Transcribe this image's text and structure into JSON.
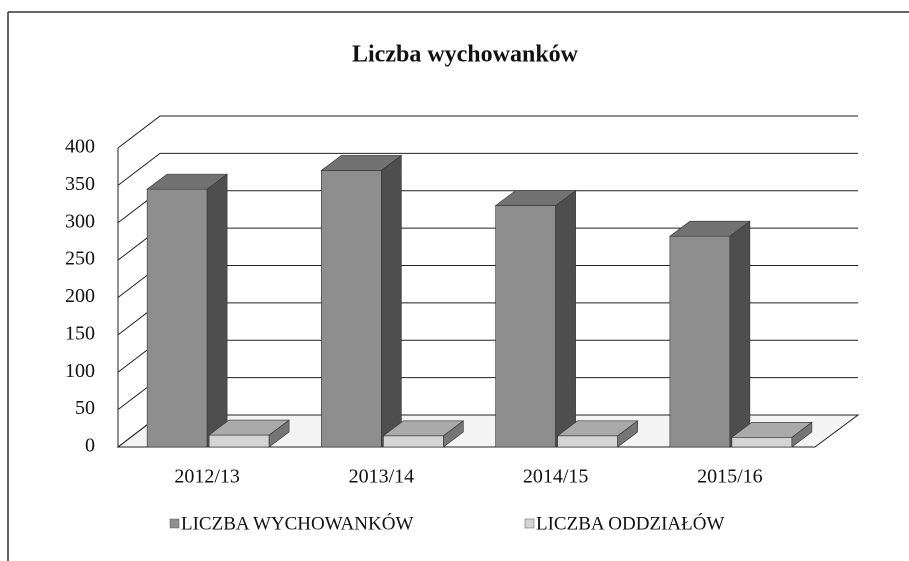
{
  "chart_data": {
    "type": "bar3d",
    "title": "Liczba wychowanków",
    "categories": [
      "2012/13",
      "2013/14",
      "2014/15",
      "2015/16"
    ],
    "series": [
      {
        "name": "LICZBA WYCHOWANKÓW",
        "color": "#8e8e8e",
        "values": [
          345,
          370,
          323,
          282
        ]
      },
      {
        "name": "LICZBA ODDZIAŁÓW",
        "color": "#d4d4d4",
        "values": [
          16,
          15,
          15,
          13
        ]
      }
    ],
    "ylim": [
      0,
      400
    ],
    "yticks": [
      0,
      50,
      100,
      150,
      200,
      250,
      300,
      350,
      400
    ],
    "grid": true
  }
}
